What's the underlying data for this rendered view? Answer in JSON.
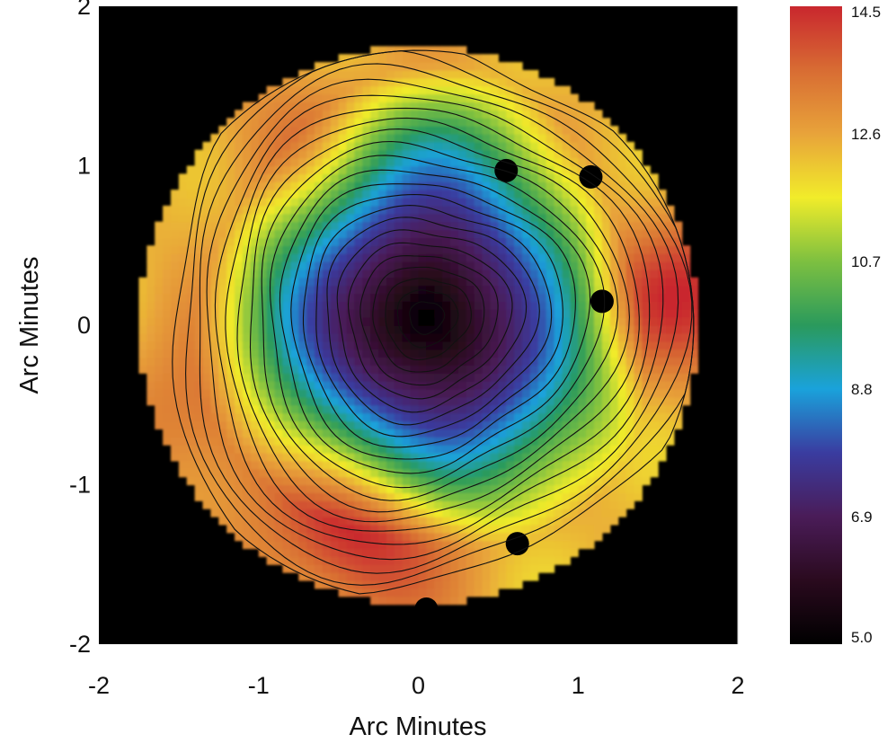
{
  "chart_data": {
    "type": "heatmap",
    "title": "",
    "xlabel": "Arc Minutes",
    "ylabel": "Arc Minutes",
    "xlim": [
      -2,
      2
    ],
    "ylim": [
      -2,
      2
    ],
    "x_ticks": [
      -2,
      -1,
      0,
      1,
      2
    ],
    "y_ticks": [
      -2,
      -1,
      0,
      1,
      2
    ],
    "background": "#000000",
    "map": {
      "center": [
        0.0,
        0.0
      ],
      "radius": 1.75,
      "peak": [
        0.05,
        0.05
      ],
      "min_value": 5.0,
      "edge_value": 12.4,
      "hot_regions": [
        {
          "center": [
            -0.4,
            -1.3
          ],
          "value": 14.5
        },
        {
          "center": [
            1.7,
            0.2
          ],
          "value": 14.2
        },
        {
          "center": [
            -1.3,
            -0.6
          ],
          "value": 13.6
        },
        {
          "center": [
            -0.8,
            1.1
          ],
          "value": 13.2
        }
      ],
      "masked_sources": [
        {
          "x": 0.55,
          "y": 0.97
        },
        {
          "x": 1.08,
          "y": 0.93
        },
        {
          "x": 1.15,
          "y": 0.15
        },
        {
          "x": 0.62,
          "y": -1.37
        },
        {
          "x": 0.05,
          "y": -1.78
        }
      ],
      "contour_count": 22
    },
    "colorbar": {
      "min": 5.0,
      "max": 14.5,
      "ticks": [
        "14.5",
        "12.6",
        "10.7",
        "8.8",
        "6.9",
        "5.0"
      ],
      "colors": [
        "#000000",
        "#2a0a1e",
        "#4a1c58",
        "#3a3ca0",
        "#1aa2db",
        "#2a9a5c",
        "#7dc040",
        "#f1ec2a",
        "#e8a33a",
        "#d86c33",
        "#c9272e"
      ]
    }
  }
}
